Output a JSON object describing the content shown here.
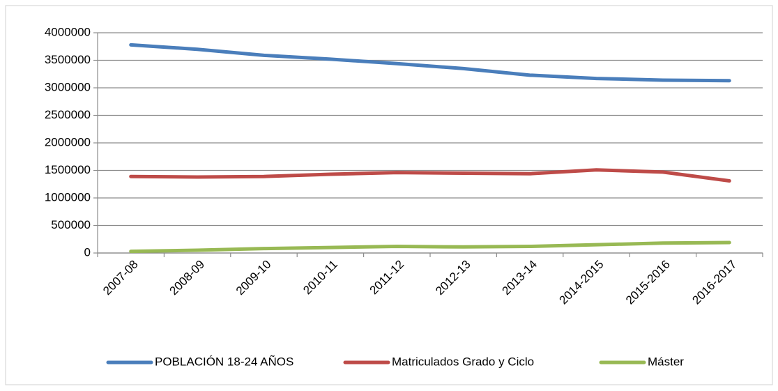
{
  "chart_data": {
    "type": "line",
    "categories": [
      "2007-08",
      "2008-09",
      "2009-10",
      "2010-11",
      "2011-12",
      "2012-13",
      "2013-14",
      "2014-2015",
      "2015-2016",
      "2016-2017"
    ],
    "series": [
      {
        "name": "POBLACIÓN 18-24 AÑOS",
        "color": "#4a7ebb",
        "values": [
          3780000,
          3700000,
          3590000,
          3520000,
          3440000,
          3350000,
          3230000,
          3170000,
          3140000,
          3130000
        ]
      },
      {
        "name": "Matriculados Grado y Ciclo",
        "color": "#be4b48",
        "values": [
          1390000,
          1380000,
          1390000,
          1430000,
          1460000,
          1450000,
          1440000,
          1510000,
          1470000,
          1310000
        ]
      },
      {
        "name": "Máster",
        "color": "#98b954",
        "values": [
          30000,
          50000,
          80000,
          100000,
          120000,
          110000,
          120000,
          150000,
          180000,
          190000
        ]
      }
    ],
    "ylim": [
      0,
      4000000
    ],
    "yticks": [
      0,
      500000,
      1000000,
      1500000,
      2000000,
      2500000,
      3000000,
      3500000,
      4000000
    ],
    "grid": true,
    "legend": "bottom"
  }
}
